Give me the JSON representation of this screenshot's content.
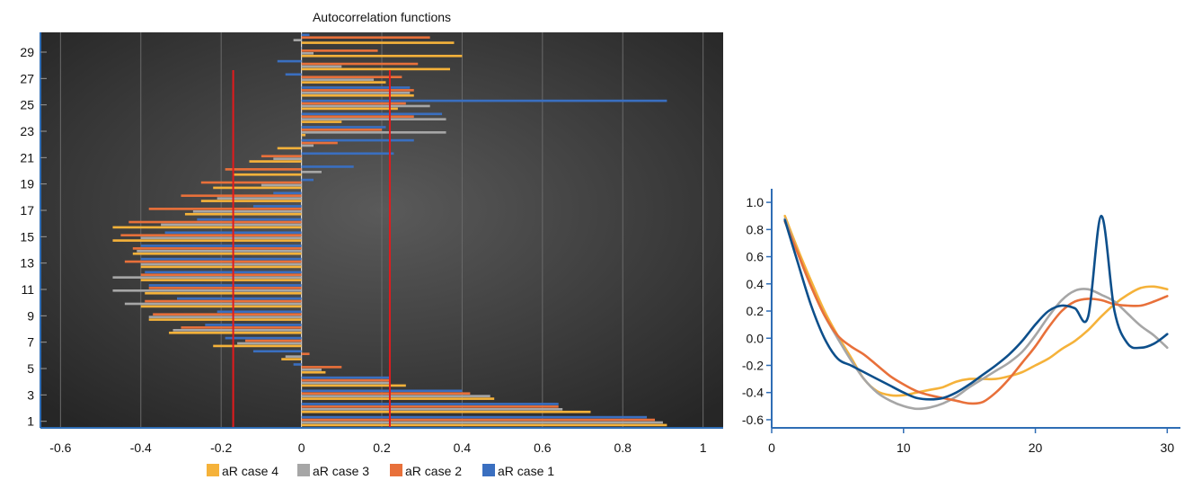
{
  "chart_data": [
    {
      "type": "bar",
      "orientation": "horizontal",
      "title": "Autocorrelation functions",
      "xlim": [
        -0.65,
        1.05
      ],
      "xticks": [
        -0.6,
        -0.4,
        -0.2,
        0,
        0.2,
        0.4,
        0.6,
        0.8,
        1
      ],
      "xtick_labels": [
        "-0.6",
        "-0.4",
        "-0.2",
        "0",
        "0.2",
        "0.4",
        "0.6",
        "0.8",
        "1"
      ],
      "ylim": [
        0.5,
        30.5
      ],
      "yticks": [
        1,
        3,
        5,
        7,
        9,
        11,
        13,
        15,
        17,
        19,
        21,
        23,
        25,
        27,
        29
      ],
      "ytick_labels": [
        "1",
        "3",
        "5",
        "7",
        "9",
        "11",
        "13",
        "15",
        "17",
        "19",
        "21",
        "23",
        "25",
        "27",
        "29"
      ],
      "categories": [
        1,
        2,
        3,
        4,
        5,
        6,
        7,
        8,
        9,
        10,
        11,
        12,
        13,
        14,
        15,
        16,
        17,
        18,
        19,
        20,
        21,
        22,
        23,
        24,
        25,
        26,
        27,
        28,
        29,
        30
      ],
      "grid": true,
      "background": "dark",
      "legend_position": "bottom",
      "series": [
        {
          "name": "aR case 4",
          "color": "#f5b23a",
          "values": [
            0.91,
            0.72,
            0.48,
            0.26,
            0.06,
            -0.05,
            -0.22,
            -0.33,
            -0.38,
            -0.4,
            -0.39,
            -0.4,
            -0.4,
            -0.42,
            -0.47,
            -0.47,
            -0.29,
            -0.25,
            -0.22,
            -0.17,
            -0.13,
            -0.06,
            0.01,
            0.1,
            0.24,
            0.28,
            0.21,
            0.37,
            0.4,
            0.38
          ]
        },
        {
          "name": "aR case 3",
          "color": "#a6a6a6",
          "values": [
            0.9,
            0.65,
            0.47,
            0.22,
            0.05,
            -0.04,
            -0.16,
            -0.32,
            -0.38,
            -0.44,
            -0.47,
            -0.47,
            -0.4,
            -0.41,
            -0.4,
            -0.35,
            -0.27,
            -0.21,
            -0.1,
            0.05,
            -0.07,
            0.03,
            0.36,
            0.36,
            0.32,
            0.27,
            0.18,
            0.1,
            0.03,
            -0.02
          ]
        },
        {
          "name": "aR case 2",
          "color": "#e8703a",
          "values": [
            0.88,
            0.64,
            0.42,
            0.22,
            0.1,
            0.02,
            -0.14,
            -0.3,
            -0.37,
            -0.39,
            -0.38,
            -0.4,
            -0.44,
            -0.42,
            -0.45,
            -0.43,
            -0.38,
            -0.3,
            -0.25,
            -0.19,
            -0.1,
            0.09,
            0.2,
            0.28,
            0.26,
            0.28,
            0.25,
            0.29,
            0.19,
            0.32
          ]
        },
        {
          "name": "aR case 1",
          "color": "#3a6fc0",
          "values": [
            0.86,
            0.64,
            0.4,
            0.22,
            -0.02,
            -0.12,
            -0.19,
            -0.24,
            -0.21,
            -0.31,
            -0.38,
            -0.39,
            -0.4,
            -0.4,
            -0.34,
            -0.26,
            -0.12,
            -0.07,
            0.03,
            0.13,
            0.23,
            0.28,
            0.21,
            0.35,
            0.91,
            0.27,
            -0.04,
            -0.06,
            0.0,
            0.02
          ]
        }
      ],
      "reference_lines": [
        {
          "x": -0.17,
          "color": "#e31a1c"
        },
        {
          "x": 0.22,
          "color": "#e31a1c"
        }
      ]
    },
    {
      "type": "line",
      "title": "",
      "xlabel": "",
      "ylabel": "",
      "xlim": [
        0,
        31
      ],
      "ylim": [
        -0.66,
        1.1
      ],
      "xticks": [
        0,
        10,
        20,
        30
      ],
      "xtick_labels": [
        "0",
        "10",
        "20",
        "30"
      ],
      "yticks": [
        -0.6,
        -0.4,
        -0.2,
        0.0,
        0.2,
        0.4,
        0.6,
        0.8,
        1.0
      ],
      "ytick_labels": [
        "-0.6",
        "-0.4",
        "-0.2",
        "0.0",
        "0.2",
        "0.4",
        "0.6",
        "0.8",
        "1.0"
      ],
      "grid": false,
      "x": [
        1,
        2,
        3,
        4,
        5,
        6,
        7,
        8,
        9,
        10,
        11,
        12,
        13,
        14,
        15,
        16,
        17,
        18,
        19,
        20,
        21,
        22,
        23,
        24,
        25,
        26,
        27,
        28,
        29,
        30
      ],
      "series": [
        {
          "color": "#f5b23a",
          "values": [
            0.9,
            0.65,
            0.42,
            0.2,
            0.02,
            -0.14,
            -0.3,
            -0.39,
            -0.42,
            -0.42,
            -0.4,
            -0.38,
            -0.36,
            -0.32,
            -0.3,
            -0.3,
            -0.3,
            -0.28,
            -0.25,
            -0.2,
            -0.15,
            -0.08,
            -0.02,
            0.06,
            0.16,
            0.25,
            0.32,
            0.37,
            0.38,
            0.36
          ]
        },
        {
          "color": "#a6a6a6",
          "values": [
            0.88,
            0.62,
            0.38,
            0.17,
            0.0,
            -0.16,
            -0.3,
            -0.4,
            -0.46,
            -0.5,
            -0.52,
            -0.51,
            -0.48,
            -0.43,
            -0.36,
            -0.3,
            -0.24,
            -0.18,
            -0.1,
            0.02,
            0.16,
            0.28,
            0.35,
            0.36,
            0.32,
            0.27,
            0.18,
            0.09,
            0.02,
            -0.07
          ]
        },
        {
          "color": "#e8703a",
          "values": [
            0.86,
            0.62,
            0.38,
            0.17,
            0.02,
            -0.06,
            -0.12,
            -0.2,
            -0.28,
            -0.34,
            -0.39,
            -0.42,
            -0.44,
            -0.46,
            -0.48,
            -0.47,
            -0.4,
            -0.3,
            -0.18,
            -0.06,
            0.08,
            0.2,
            0.27,
            0.29,
            0.28,
            0.25,
            0.24,
            0.24,
            0.27,
            0.31
          ]
        },
        {
          "color": "#0d4f8b",
          "values": [
            0.87,
            0.55,
            0.24,
            0.0,
            -0.15,
            -0.2,
            -0.25,
            -0.3,
            -0.35,
            -0.4,
            -0.44,
            -0.45,
            -0.44,
            -0.4,
            -0.34,
            -0.27,
            -0.2,
            -0.12,
            -0.02,
            0.1,
            0.2,
            0.24,
            0.22,
            0.16,
            0.9,
            0.2,
            -0.04,
            -0.07,
            -0.04,
            0.03
          ]
        }
      ]
    }
  ]
}
